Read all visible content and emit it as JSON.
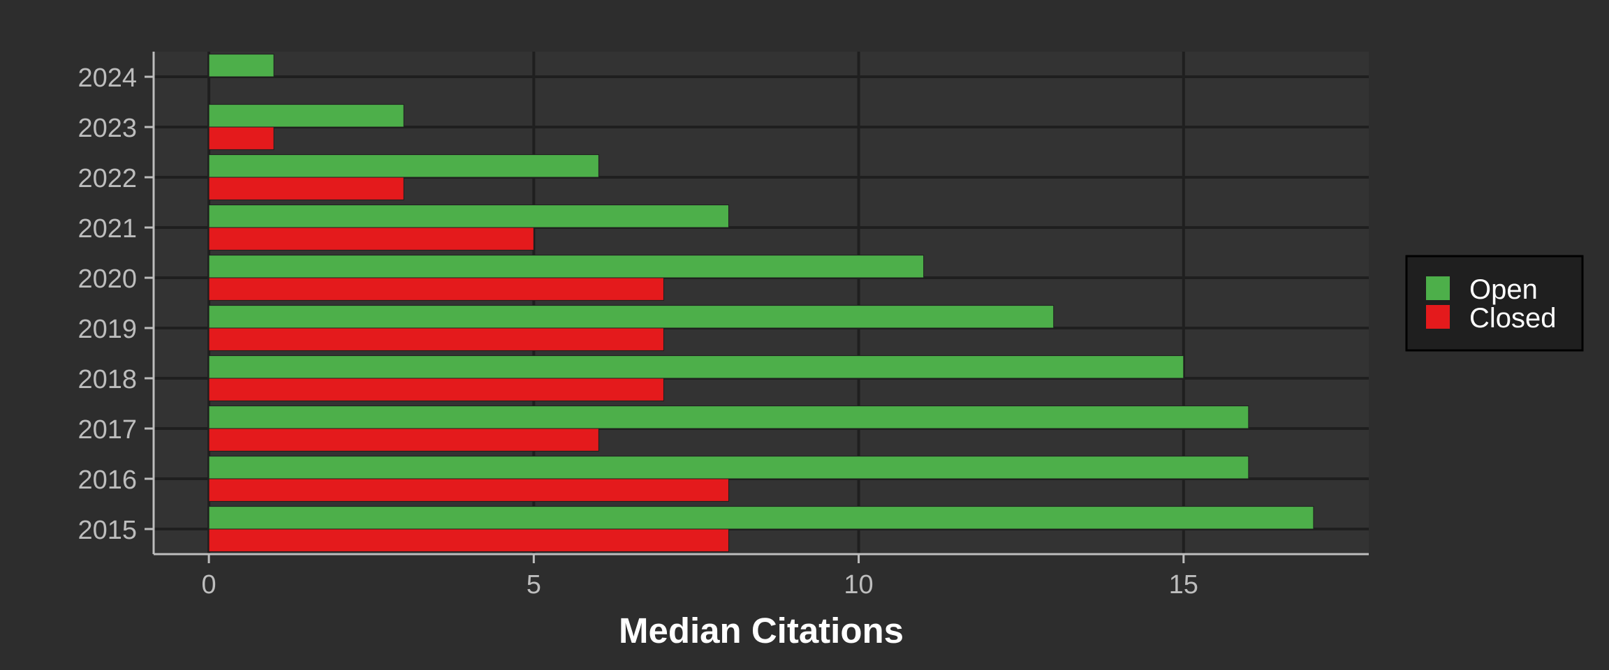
{
  "chart_data": {
    "type": "bar",
    "orientation": "horizontal",
    "title": "",
    "xlabel": "Median Citations",
    "ylabel": "",
    "categories": [
      "2015",
      "2016",
      "2017",
      "2018",
      "2019",
      "2020",
      "2021",
      "2022",
      "2023",
      "2024"
    ],
    "series": [
      {
        "name": "Open",
        "color": "#4daf4a",
        "values": [
          17,
          16,
          16,
          15,
          13,
          11,
          8,
          6,
          3,
          1
        ]
      },
      {
        "name": "Closed",
        "color": "#e41a1c",
        "values": [
          8,
          8,
          6,
          7,
          7,
          7,
          5,
          3,
          1,
          null
        ]
      }
    ],
    "xticks": [
      "0",
      "5",
      "10",
      "15"
    ],
    "xlim": [
      -0.85,
      17.85
    ],
    "grid": true,
    "legend_position": "right",
    "colors": {
      "background": "#2d2d2d",
      "panel": "#333333",
      "grid": "#1f1f1f",
      "axis": "#bdbdbd"
    }
  }
}
